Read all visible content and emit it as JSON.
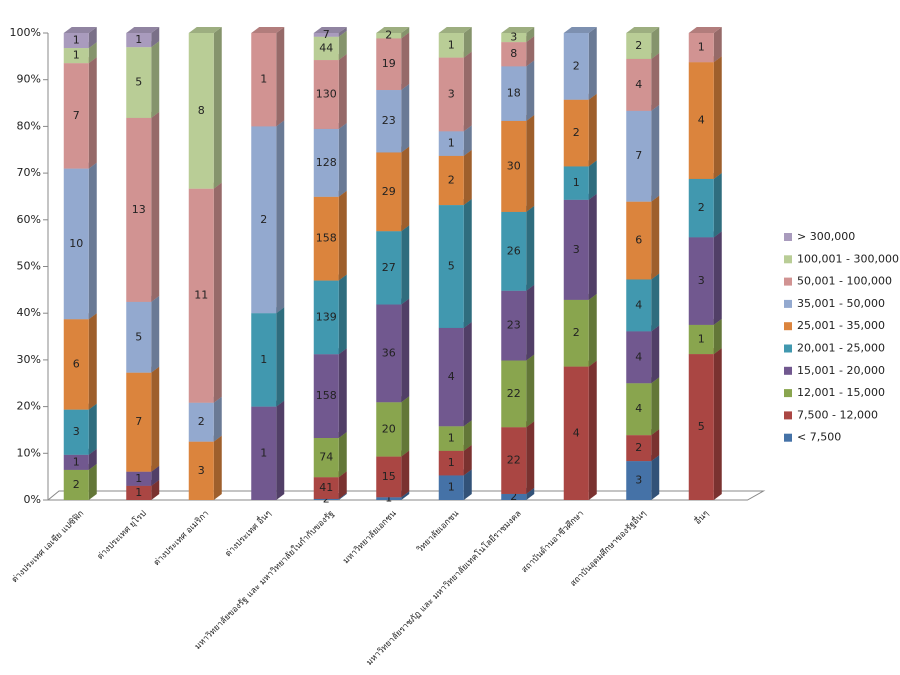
{
  "chart_data": {
    "type": "bar",
    "stacking": "percent",
    "legend": "right",
    "categories": [
      "ต่างประเทศ เอเชีย แปซิฟิก",
      "ต่างประเทศ ยุโรป",
      "ต่างประเทศ อเมริกา",
      "ต่างประเทศ อื่นๆ",
      "มหาวิทยาลัยของรัฐ และ มหาวิทยาลัยในกำกับของรัฐ",
      "มหาวิทยาลัยเอกชน",
      "วิทยาลัยเอกชน",
      "มหาวิทยาลัยราชภัฏ และ มหาวิทยาลัยเทคโนโลยีราชมงคล",
      "สถาบันด้านอาชีวศึกษา",
      "สถาบันอุดมศึกษาของรัฐอื่นๆ",
      "อื่นๆ"
    ],
    "series": [
      {
        "name": "< 7,500",
        "color": "#4572a7",
        "values": [
          null,
          null,
          null,
          null,
          2,
          1,
          1,
          2,
          null,
          3,
          null
        ]
      },
      {
        "name": "7,500 - 12,000",
        "color": "#aa4643",
        "values": [
          null,
          1,
          null,
          null,
          41,
          15,
          1,
          22,
          4,
          2,
          5
        ]
      },
      {
        "name": "12,001 - 15,000",
        "color": "#89a54e",
        "values": [
          2,
          null,
          null,
          null,
          74,
          20,
          1,
          22,
          2,
          4,
          1
        ]
      },
      {
        "name": "15,001 - 20,000",
        "color": "#71588f",
        "values": [
          1,
          1,
          null,
          1,
          158,
          36,
          4,
          23,
          3,
          4,
          3
        ]
      },
      {
        "name": "20,001 - 25,000",
        "color": "#4198af",
        "values": [
          3,
          null,
          null,
          1,
          139,
          27,
          5,
          26,
          1,
          4,
          2
        ]
      },
      {
        "name": "25,001 - 35,000",
        "color": "#db843d",
        "values": [
          6,
          7,
          3,
          null,
          158,
          29,
          2,
          30,
          2,
          6,
          4
        ]
      },
      {
        "name": "35,001 - 50,000",
        "color": "#93a9cf",
        "values": [
          10,
          5,
          2,
          2,
          128,
          23,
          1,
          18,
          2,
          7,
          null
        ]
      },
      {
        "name": "50,001 - 100,000",
        "color": "#d19392",
        "values": [
          7,
          13,
          11,
          1,
          130,
          19,
          3,
          8,
          null,
          4,
          1
        ]
      },
      {
        "name": "100,001 - 300,000",
        "color": "#b9cd96",
        "values": [
          1,
          5,
          8,
          null,
          44,
          2,
          1,
          3,
          null,
          2,
          null
        ]
      },
      {
        "name": "> 300,000",
        "color": "#a99bbd",
        "values": [
          1,
          1,
          null,
          null,
          7,
          null,
          null,
          null,
          null,
          null,
          null
        ]
      }
    ],
    "ylim": [
      0,
      100
    ],
    "yticks": [
      {
        "value": 0,
        "label": "0%"
      },
      {
        "value": 10,
        "label": "10%"
      },
      {
        "value": 20,
        "label": "20%"
      },
      {
        "value": 30,
        "label": "30%"
      },
      {
        "value": 40,
        "label": "40%"
      },
      {
        "value": 50,
        "label": "50%"
      },
      {
        "value": 60,
        "label": "60%"
      },
      {
        "value": 70,
        "label": "70%"
      },
      {
        "value": 80,
        "label": "80%"
      },
      {
        "value": 90,
        "label": "90%"
      },
      {
        "value": 100,
        "label": "100%"
      }
    ]
  }
}
